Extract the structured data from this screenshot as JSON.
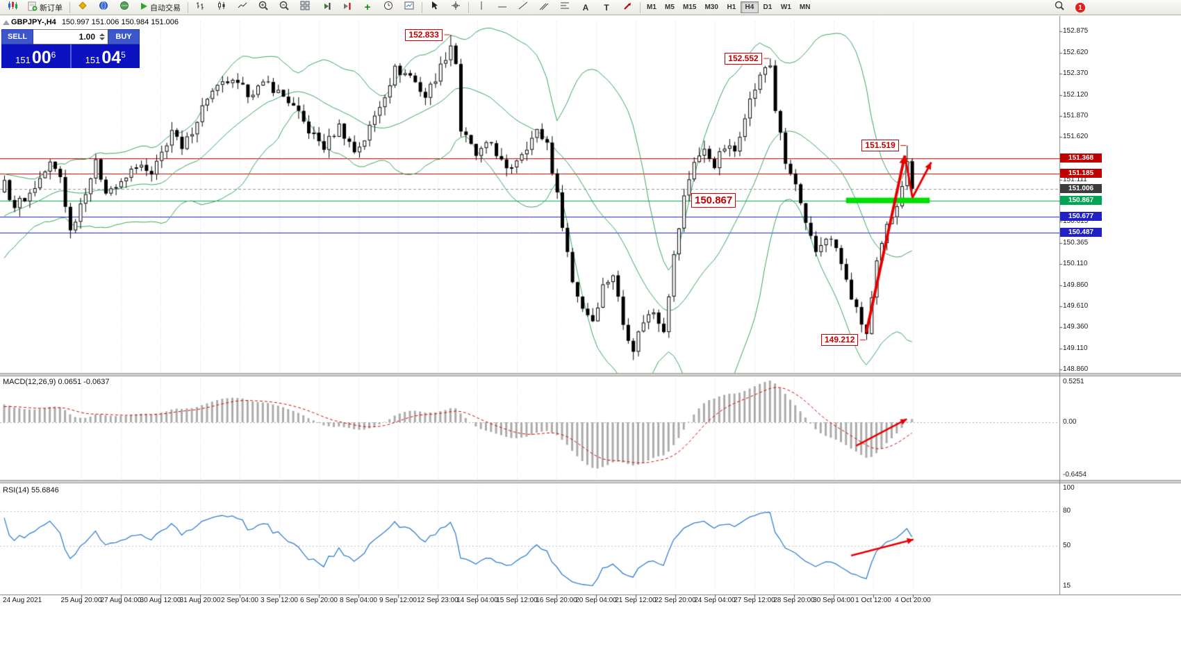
{
  "toolbar": {
    "new_order": "新订单",
    "auto_trading": "自动交易",
    "timeframes": [
      "M1",
      "M5",
      "M15",
      "M30",
      "H1",
      "H4",
      "D1",
      "W1",
      "MN"
    ],
    "active_timeframe": "H4",
    "notification_count": "1"
  },
  "header": {
    "symbol": "GBPJPY-,H4",
    "ohlc": "150.997 151.006 150.984 151.006"
  },
  "trade_panel": {
    "sell_label": "SELL",
    "buy_label": "BUY",
    "volume": "1.00",
    "sell_price": {
      "big": "151",
      "mid": "00",
      "sup": "6"
    },
    "buy_price": {
      "big": "151",
      "mid": "04",
      "sup": "5"
    }
  },
  "price_axis": {
    "ticks": [
      "152.875",
      "152.620",
      "152.370",
      "152.120",
      "151.870",
      "151.620",
      "151.365",
      "151.111",
      "150.865",
      "150.615",
      "150.365",
      "150.110",
      "149.860",
      "149.610",
      "149.360",
      "149.110",
      "148.860"
    ],
    "tags": [
      {
        "value": "151.368",
        "color": "#c00000"
      },
      {
        "value": "151.185",
        "color": "#c00000"
      },
      {
        "value": "151.006",
        "color": "#3c3c3c"
      },
      {
        "value": "150.867",
        "color": "#00a651"
      },
      {
        "value": "150.677",
        "color": "#2020c8"
      },
      {
        "value": "150.487",
        "color": "#2020c8"
      }
    ]
  },
  "macd": {
    "label": "MACD(12,26,9) 0.0651 -0.0637",
    "axis_labels": [
      "0.5251",
      "0.00",
      "-0.6454"
    ]
  },
  "rsi": {
    "label": "RSI(14) 55.6846",
    "axis_labels": [
      "100",
      "80",
      "50",
      "15"
    ],
    "levels": [
      80,
      50
    ]
  },
  "time_axis": [
    "24 Aug 2021",
    "25 Aug 20:00",
    "27 Aug 04:00",
    "30 Aug 12:00",
    "31 Aug 20:00",
    "2 Sep 04:00",
    "3 Sep 12:00",
    "6 Sep 20:00",
    "8 Sep 04:00",
    "9 Sep 12:00",
    "12 Sep 23:00",
    "14 Sep 04:00",
    "15 Sep 12:00",
    "16 Sep 20:00",
    "20 Sep 04:00",
    "21 Sep 12:00",
    "22 Sep 20:00",
    "24 Sep 04:00",
    "27 Sep 12:00",
    "28 Sep 20:00",
    "30 Sep 04:00",
    "1 Oct 12:00",
    "4 Oct 20:00"
  ],
  "chart_data": {
    "type": "candlestick",
    "symbol": "GBPJPY",
    "timeframe": "H4",
    "ylim": [
      148.82,
      152.99
    ],
    "visible_candles": 180,
    "indicators": [
      "Bollinger Bands(20,2)",
      "MACD(12,26,9)",
      "RSI(14)"
    ],
    "key_points": {
      "peak_high": 152.833,
      "second_peak": 152.552,
      "swing_high": 151.519,
      "swing_low": 149.212,
      "support_level": 150.867,
      "last_close": 151.006
    },
    "price_path_anchors": [
      [
        -36,
        150.2
      ],
      [
        -30,
        149.5
      ],
      [
        -24,
        150.0
      ],
      [
        -16,
        150.4
      ],
      [
        -8,
        150.8
      ],
      [
        0,
        151.05
      ],
      [
        2,
        150.8
      ],
      [
        5,
        150.95
      ],
      [
        9,
        151.3
      ],
      [
        11,
        151.15
      ],
      [
        13,
        150.5
      ],
      [
        16,
        151.0
      ],
      [
        18,
        151.3
      ],
      [
        20,
        151.0
      ],
      [
        23,
        151.05
      ],
      [
        26,
        151.3
      ],
      [
        29,
        151.15
      ],
      [
        33,
        151.7
      ],
      [
        35,
        151.45
      ],
      [
        40,
        152.1
      ],
      [
        44,
        152.28
      ],
      [
        48,
        152.15
      ],
      [
        52,
        152.25
      ],
      [
        56,
        152.05
      ],
      [
        60,
        151.7
      ],
      [
        63,
        151.5
      ],
      [
        66,
        151.75
      ],
      [
        69,
        151.45
      ],
      [
        71,
        151.6
      ],
      [
        74,
        152.0
      ],
      [
        77,
        152.42
      ],
      [
        80,
        152.35
      ],
      [
        83,
        152.1
      ],
      [
        86,
        152.45
      ],
      [
        88,
        152.72
      ],
      [
        89,
        152.5
      ],
      [
        90,
        151.7
      ],
      [
        93,
        151.4
      ],
      [
        96,
        151.55
      ],
      [
        99,
        151.2
      ],
      [
        102,
        151.45
      ],
      [
        105,
        151.68
      ],
      [
        107,
        151.55
      ],
      [
        110,
        150.6
      ],
      [
        112,
        149.9
      ],
      [
        114,
        149.6
      ],
      [
        116,
        149.45
      ],
      [
        118,
        149.85
      ],
      [
        120,
        150.0
      ],
      [
        122,
        149.4
      ],
      [
        124,
        149.12
      ],
      [
        126,
        149.45
      ],
      [
        128,
        149.55
      ],
      [
        130,
        149.35
      ],
      [
        132,
        150.2
      ],
      [
        134,
        150.9
      ],
      [
        136,
        151.35
      ],
      [
        138,
        151.45
      ],
      [
        140,
        151.3
      ],
      [
        142,
        151.5
      ],
      [
        144,
        151.45
      ],
      [
        146,
        151.9
      ],
      [
        148,
        152.2
      ],
      [
        150,
        152.45
      ],
      [
        151,
        152.48
      ],
      [
        152,
        151.95
      ],
      [
        154,
        151.3
      ],
      [
        156,
        151.05
      ],
      [
        158,
        150.55
      ],
      [
        160,
        150.25
      ],
      [
        162,
        150.45
      ],
      [
        164,
        150.3
      ],
      [
        166,
        149.9
      ],
      [
        168,
        149.55
      ],
      [
        170,
        149.28
      ],
      [
        172,
        150.1
      ],
      [
        174,
        150.55
      ],
      [
        176,
        150.85
      ],
      [
        178,
        151.3
      ],
      [
        179,
        151.006
      ]
    ],
    "forced_points": [
      [
        88,
        "h",
        152.833
      ],
      [
        151,
        "h",
        152.552
      ],
      [
        170,
        "l",
        149.212
      ],
      [
        178,
        "h",
        151.519
      ]
    ],
    "hlines": [
      {
        "price": 151.368,
        "color": "#c00000",
        "style": "solid"
      },
      {
        "price": 151.185,
        "color": "#c00000",
        "style": "solid"
      },
      {
        "price": 151.006,
        "color": "#999999",
        "style": "dashed"
      },
      {
        "price": 150.867,
        "color": "#00a651",
        "style": "solid"
      },
      {
        "price": 150.677,
        "color": "#2020cc",
        "style": "solid"
      },
      {
        "price": 150.487,
        "color": "#2020cc",
        "style": "solid"
      }
    ],
    "callouts": [
      {
        "value": "152.833",
        "i": 88,
        "price": 152.833,
        "side": "left",
        "large": false
      },
      {
        "value": "152.552",
        "i": 151,
        "price": 152.552,
        "side": "left",
        "large": false
      },
      {
        "value": "151.519",
        "i": 178,
        "price": 151.519,
        "side": "left",
        "large": false
      },
      {
        "value": "150.867",
        "i": 140,
        "price": 150.867,
        "side": "center",
        "large": true
      },
      {
        "value": "149.212",
        "i": 170,
        "price": 149.212,
        "side": "left",
        "large": false
      }
    ],
    "support_bar": {
      "price": 150.867,
      "i_start": 166,
      "i_end": 182.5,
      "color": "#00dd00"
    },
    "arrows": [
      {
        "panel": "price",
        "x1_i": 170,
        "v1": 149.3,
        "x2_i": 177.6,
        "v2": 151.4,
        "w": 4,
        "head": true
      },
      {
        "panel": "price",
        "x1_i": 177.6,
        "v1": 151.4,
        "x2_i": 179.1,
        "v2": 150.9,
        "w": 3,
        "head": false
      },
      {
        "panel": "price",
        "x1_i": 179.1,
        "v1": 150.9,
        "x2_i": 182.8,
        "v2": 151.32,
        "w": 3,
        "head": true
      },
      {
        "panel": "macd",
        "x1_i": 168,
        "v1": -0.3,
        "x2_i": 178,
        "v2": 0.04,
        "w": 2.5,
        "head": true
      },
      {
        "panel": "rsi",
        "x1_i": 167,
        "v1": 41.5,
        "x2_i": 179.3,
        "v2": 55.5,
        "w": 2.5,
        "head": true
      }
    ],
    "colors": {
      "annotation": "#e60000",
      "bollinger": "#3aa45f",
      "macd_hist": "#ababab",
      "macd_signal": "#dd0000",
      "rsi_line": "#2f7fd0"
    }
  }
}
